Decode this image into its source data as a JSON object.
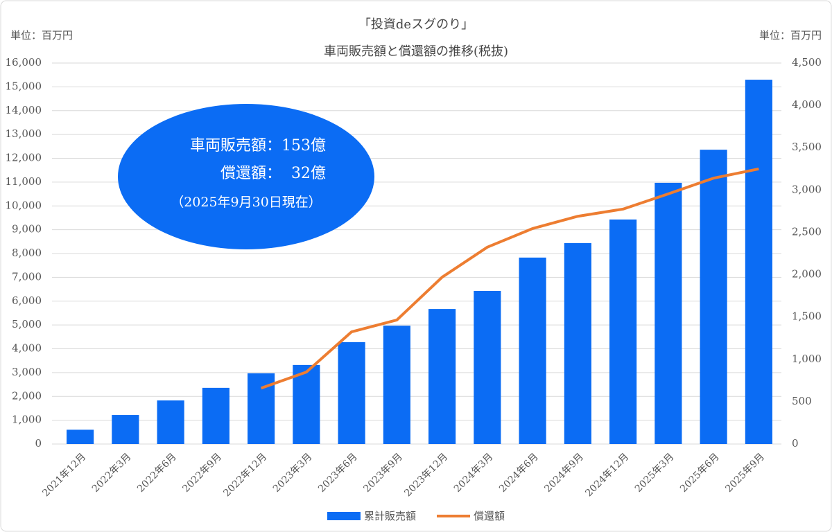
{
  "chart_data": {
    "type": "bar-line",
    "title": "「投資deスグのり」",
    "subtitle": "車両販売額と償還額の推移(税抜)",
    "ylabel": "単位：百万円",
    "y2label": "単位：百万円",
    "annotations": [
      "車両販売額：153億",
      "償還額：  32億",
      "（2025年9月30日現在）"
    ],
    "categories": [
      "2021年12月",
      "2022年3月",
      "2022年6月",
      "2022年9月",
      "2022年12月",
      "2023年3月",
      "2023年6月",
      "2023年9月",
      "2023年12月",
      "2024年3月",
      "2024年6月",
      "2024年9月",
      "2024年12月",
      "2025年3月",
      "2025年6月",
      "2025年9月"
    ],
    "series": [
      {
        "name": "累計販売額",
        "type": "bar",
        "color": "#0b6cf4",
        "values": [
          600,
          1220,
          1830,
          2360,
          2970,
          3320,
          4280,
          4970,
          5670,
          6430,
          7830,
          8440,
          9430,
          10970,
          12360,
          15300
        ]
      },
      {
        "name": "償還額",
        "type": "line",
        "axis": "y2",
        "color": "#ed7d31",
        "values": [
          null,
          null,
          null,
          null,
          660,
          850,
          1325,
          1465,
          1970,
          2325,
          2545,
          2690,
          2775,
          2955,
          3140,
          3250
        ]
      }
    ],
    "ylim": [
      0,
      16000
    ],
    "yticks": [
      0,
      {
        "value": 1000,
        "label": "1,000"
      },
      {
        "value": 2000,
        "label": "2,000"
      },
      {
        "value": 3000,
        "label": "3,000"
      },
      {
        "value": 4000,
        "label": "4,000"
      },
      {
        "value": 5000,
        "label": "5,000"
      },
      {
        "value": 6000,
        "label": "6,000"
      },
      {
        "value": 7000,
        "label": "7,000"
      },
      {
        "value": 8000,
        "label": "8,000"
      },
      {
        "value": 9000,
        "label": "9,000"
      },
      {
        "value": 10000,
        "label": "10,000"
      },
      {
        "value": 11000,
        "label": "11,000"
      },
      {
        "value": 12000,
        "label": "12,000"
      },
      {
        "value": 13000,
        "label": "13,000"
      },
      {
        "value": 14000,
        "label": "14,000"
      },
      {
        "value": 15000,
        "label": "15,000"
      },
      {
        "value": 16000,
        "label": "16,000"
      }
    ],
    "y2lim": [
      0,
      4500
    ],
    "y2ticks": [
      0,
      500,
      {
        "value": 1000,
        "label": "1,000"
      },
      {
        "value": 1500,
        "label": "1,500"
      },
      {
        "value": 2000,
        "label": "2,000"
      },
      {
        "value": 2500,
        "label": "2,500"
      },
      {
        "value": 3000,
        "label": "3,000"
      },
      {
        "value": 3500,
        "label": "3,500"
      },
      {
        "value": 4000,
        "label": "4,000"
      },
      {
        "value": 4500,
        "label": "4,500"
      }
    ],
    "grid": true,
    "legend": "bottom"
  }
}
